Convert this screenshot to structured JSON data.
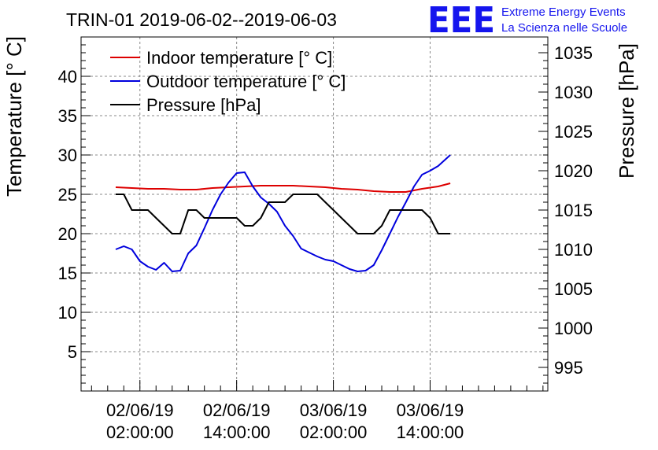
{
  "header": {
    "title": "TRIN-01 2019-06-02--2019-06-03",
    "logo_letters": "EEE",
    "logo_line1": "Extreme Energy Events",
    "logo_line2": "La Scienza nelle Scuole",
    "logo_color": "#1515ee"
  },
  "chart_data": {
    "type": "line",
    "title": "TRIN-01 2019-06-02--2019-06-03",
    "ylabel": "Temperature [° C]",
    "y2label": "Pressure [hPa]",
    "xlabel": "",
    "ylim": [
      0,
      45
    ],
    "y2lim": [
      992,
      1037
    ],
    "xlim_hours": [
      -9.3,
      48.6
    ],
    "grid": true,
    "legend_position": "top-left",
    "y_ticks": [
      5,
      10,
      15,
      20,
      25,
      30,
      35,
      40
    ],
    "y2_ticks": [
      995,
      1000,
      1005,
      1010,
      1015,
      1020,
      1025,
      1030,
      1035
    ],
    "x_ticks": [
      {
        "hour": -2,
        "date": "02/06/19",
        "time": "02:00:00"
      },
      {
        "hour": 10,
        "date": "02/06/19",
        "time": "14:00:00"
      },
      {
        "hour": 22,
        "date": "03/06/19",
        "time": "02:00:00"
      },
      {
        "hour": 34,
        "date": "03/06/19",
        "time": "14:00:00"
      }
    ],
    "series": [
      {
        "name": "Indoor temperature [° C]",
        "axis": "left",
        "color": "#dd0000",
        "x": [
          -5,
          -3,
          -1,
          1,
          3,
          5,
          7,
          9,
          11,
          13,
          15,
          17,
          19,
          21,
          23,
          25,
          27,
          29,
          31,
          33,
          35,
          36.5
        ],
        "y": [
          25.9,
          25.8,
          25.7,
          25.7,
          25.6,
          25.6,
          25.8,
          25.9,
          26.0,
          26.1,
          26.1,
          26.1,
          26.0,
          25.9,
          25.7,
          25.6,
          25.4,
          25.3,
          25.3,
          25.7,
          26.0,
          26.4
        ]
      },
      {
        "name": "Outdoor temperature [° C]",
        "axis": "left",
        "color": "#0000dd",
        "x": [
          -5,
          -4,
          -3,
          -2,
          -1,
          0,
          1,
          2,
          3,
          4,
          5,
          6,
          7,
          8,
          9,
          10,
          11,
          12,
          13,
          14,
          15,
          16,
          17,
          18,
          19,
          20,
          21,
          22,
          23,
          24,
          25,
          26,
          27,
          28,
          29,
          30,
          31,
          32,
          33,
          34,
          35,
          36.5
        ],
        "y": [
          18.0,
          18.4,
          18.0,
          16.5,
          15.8,
          15.4,
          16.3,
          15.2,
          15.3,
          17.5,
          18.5,
          20.7,
          23.0,
          25.0,
          26.5,
          27.7,
          27.8,
          26.0,
          24.6,
          23.8,
          22.8,
          21.0,
          19.7,
          18.1,
          17.6,
          17.1,
          16.7,
          16.5,
          16.0,
          15.5,
          15.2,
          15.3,
          16.0,
          17.9,
          20.0,
          22.1,
          24.0,
          26.0,
          27.5,
          28.0,
          28.6,
          30.0
        ]
      },
      {
        "name": "Pressure [hPa]",
        "axis": "right",
        "color": "#000000",
        "x": [
          -5,
          -4,
          -3,
          -1,
          0,
          1,
          2,
          3,
          4,
          5,
          6,
          7,
          8,
          9,
          10,
          11,
          12,
          13,
          14,
          15,
          16,
          17,
          18,
          19,
          20,
          21,
          22,
          23,
          24,
          25,
          26,
          27,
          28,
          29,
          30,
          31,
          32,
          33,
          34,
          35,
          36.5
        ],
        "y": [
          1017,
          1017,
          1015,
          1015,
          1014,
          1013,
          1012,
          1012,
          1015,
          1015,
          1014,
          1014,
          1014,
          1014,
          1014,
          1013,
          1013,
          1014,
          1016,
          1016,
          1016,
          1017,
          1017,
          1017,
          1017,
          1016,
          1015,
          1014,
          1013,
          1012,
          1012,
          1012,
          1013,
          1015,
          1015,
          1015,
          1015,
          1015,
          1014,
          1012,
          1012
        ]
      }
    ]
  }
}
